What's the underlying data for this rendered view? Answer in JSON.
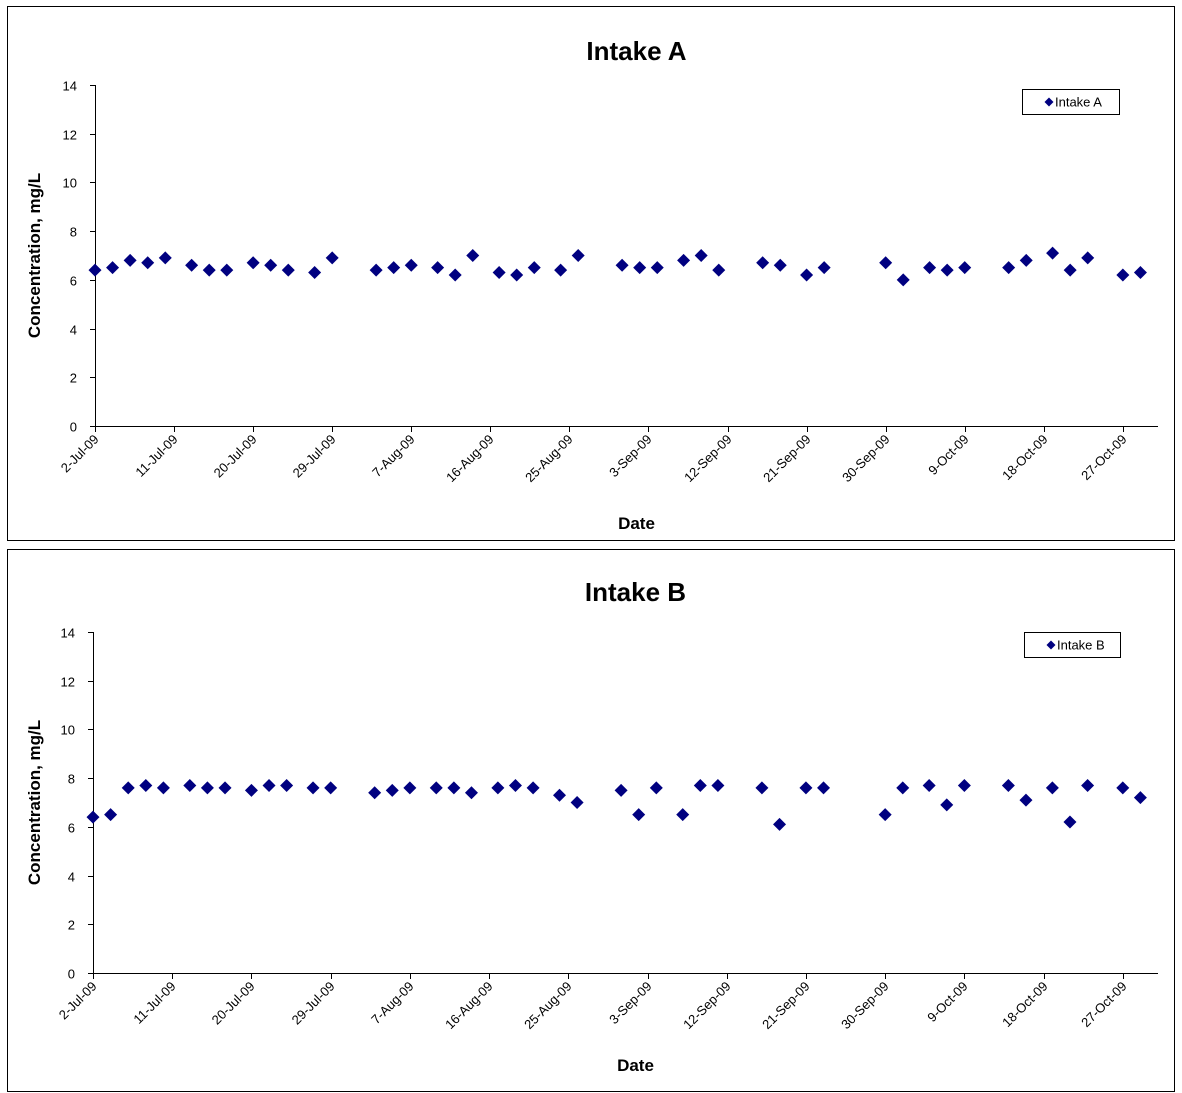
{
  "colors": {
    "marker": "#000080",
    "axis": "#000000",
    "background": "#ffffff"
  },
  "chart_data": [
    {
      "type": "scatter",
      "title": "Intake A",
      "xlabel": "Date",
      "ylabel": "Concentration, mg/L",
      "ylim": [
        0,
        14
      ],
      "yticks": [
        0,
        2,
        4,
        6,
        8,
        10,
        12,
        14
      ],
      "xlim": [
        "2009-07-02",
        "2009-10-31"
      ],
      "xtick_labels": [
        "2-Jul-09",
        "11-Jul-09",
        "20-Jul-09",
        "29-Jul-09",
        "7-Aug-09",
        "16-Aug-09",
        "25-Aug-09",
        "3-Sep-09",
        "12-Sep-09",
        "21-Sep-09",
        "30-Sep-09",
        "9-Oct-09",
        "18-Oct-09",
        "27-Oct-09"
      ],
      "xtick_dates": [
        "2009-07-02",
        "2009-07-11",
        "2009-07-20",
        "2009-07-29",
        "2009-08-07",
        "2009-08-16",
        "2009-08-25",
        "2009-09-03",
        "2009-09-12",
        "2009-09-21",
        "2009-09-30",
        "2009-10-09",
        "2009-10-18",
        "2009-10-27"
      ],
      "grid": false,
      "legend_position": "top-right",
      "series": [
        {
          "name": "Intake A",
          "x": [
            "2009-07-02",
            "2009-07-04",
            "2009-07-06",
            "2009-07-08",
            "2009-07-10",
            "2009-07-13",
            "2009-07-15",
            "2009-07-17",
            "2009-07-20",
            "2009-07-22",
            "2009-07-24",
            "2009-07-27",
            "2009-07-29",
            "2009-08-03",
            "2009-08-05",
            "2009-08-07",
            "2009-08-10",
            "2009-08-12",
            "2009-08-14",
            "2009-08-17",
            "2009-08-19",
            "2009-08-21",
            "2009-08-24",
            "2009-08-26",
            "2009-08-31",
            "2009-09-02",
            "2009-09-04",
            "2009-09-07",
            "2009-09-09",
            "2009-09-11",
            "2009-09-16",
            "2009-09-18",
            "2009-09-21",
            "2009-09-23",
            "2009-09-30",
            "2009-10-02",
            "2009-10-05",
            "2009-10-07",
            "2009-10-09",
            "2009-10-14",
            "2009-10-16",
            "2009-10-19",
            "2009-10-21",
            "2009-10-23",
            "2009-10-27",
            "2009-10-29"
          ],
          "y": [
            6.4,
            6.5,
            6.8,
            6.7,
            6.9,
            6.6,
            6.4,
            6.4,
            6.7,
            6.6,
            6.4,
            6.3,
            6.9,
            6.4,
            6.5,
            6.6,
            6.5,
            6.2,
            7.0,
            6.3,
            6.2,
            6.5,
            6.4,
            7.0,
            6.6,
            6.5,
            6.5,
            6.8,
            7.0,
            6.4,
            6.7,
            6.6,
            6.2,
            6.5,
            6.7,
            6.0,
            6.5,
            6.4,
            6.5,
            6.5,
            6.8,
            7.1,
            6.4,
            6.9,
            6.2,
            6.3
          ]
        }
      ]
    },
    {
      "type": "scatter",
      "title": "Intake B",
      "xlabel": "Date",
      "ylabel": "Concentration, mg/L",
      "ylim": [
        0,
        14
      ],
      "yticks": [
        0,
        2,
        4,
        6,
        8,
        10,
        12,
        14
      ],
      "xlim": [
        "2009-07-02",
        "2009-10-31"
      ],
      "xtick_labels": [
        "2-Jul-09",
        "11-Jul-09",
        "20-Jul-09",
        "29-Jul-09",
        "7-Aug-09",
        "16-Aug-09",
        "25-Aug-09",
        "3-Sep-09",
        "12-Sep-09",
        "21-Sep-09",
        "30-Sep-09",
        "9-Oct-09",
        "18-Oct-09",
        "27-Oct-09"
      ],
      "xtick_dates": [
        "2009-07-02",
        "2009-07-11",
        "2009-07-20",
        "2009-07-29",
        "2009-08-07",
        "2009-08-16",
        "2009-08-25",
        "2009-09-03",
        "2009-09-12",
        "2009-09-21",
        "2009-09-30",
        "2009-10-09",
        "2009-10-18",
        "2009-10-27"
      ],
      "grid": false,
      "legend_position": "top-right",
      "series": [
        {
          "name": "Intake B",
          "x": [
            "2009-07-02",
            "2009-07-04",
            "2009-07-06",
            "2009-07-08",
            "2009-07-10",
            "2009-07-13",
            "2009-07-15",
            "2009-07-17",
            "2009-07-20",
            "2009-07-22",
            "2009-07-24",
            "2009-07-27",
            "2009-07-29",
            "2009-08-03",
            "2009-08-05",
            "2009-08-07",
            "2009-08-10",
            "2009-08-12",
            "2009-08-14",
            "2009-08-17",
            "2009-08-19",
            "2009-08-21",
            "2009-08-24",
            "2009-08-26",
            "2009-08-31",
            "2009-09-02",
            "2009-09-04",
            "2009-09-07",
            "2009-09-09",
            "2009-09-11",
            "2009-09-16",
            "2009-09-18",
            "2009-09-21",
            "2009-09-23",
            "2009-09-30",
            "2009-10-02",
            "2009-10-05",
            "2009-10-07",
            "2009-10-09",
            "2009-10-14",
            "2009-10-16",
            "2009-10-19",
            "2009-10-21",
            "2009-10-23",
            "2009-10-27",
            "2009-10-29"
          ],
          "y": [
            6.4,
            6.5,
            7.6,
            7.7,
            7.6,
            7.7,
            7.6,
            7.6,
            7.5,
            7.7,
            7.7,
            7.6,
            7.6,
            7.4,
            7.5,
            7.6,
            7.6,
            7.6,
            7.4,
            7.6,
            7.7,
            7.6,
            7.3,
            7.0,
            7.5,
            6.5,
            7.6,
            6.5,
            7.7,
            7.7,
            7.6,
            6.1,
            7.6,
            7.6,
            6.5,
            7.6,
            7.7,
            6.9,
            7.7,
            7.7,
            7.1,
            7.6,
            6.2,
            7.7,
            7.6,
            7.2
          ]
        }
      ]
    }
  ]
}
